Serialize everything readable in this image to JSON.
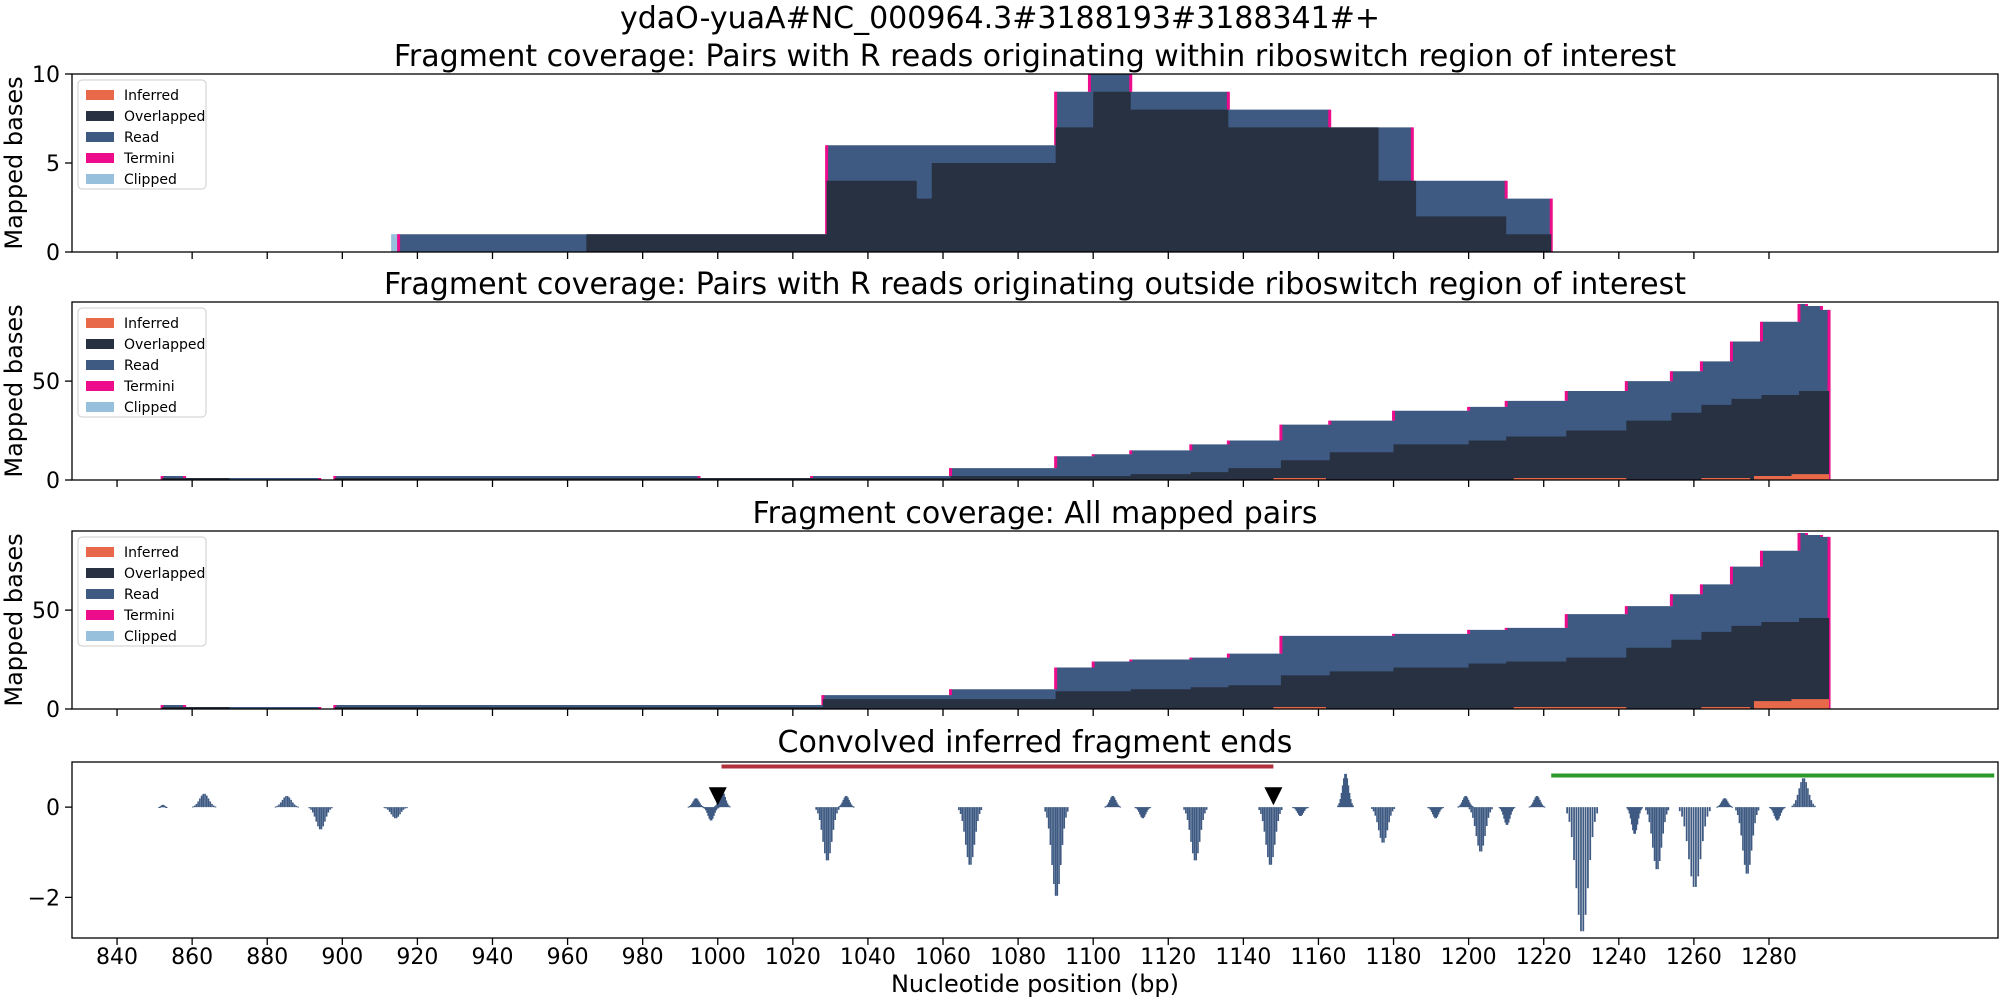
{
  "figure": {
    "suptitle": "ydaO-yuaA#NC_000964.3#3188193#3188341#+",
    "xlabel": "Nucleotide position (bp)"
  },
  "colors": {
    "inferred": "#e8694a",
    "overlapped": "#283142",
    "read": "#3e5a82",
    "termini": "#ec0c8c",
    "clipped": "#97c0dc",
    "bar": "#3e5a82",
    "bracket_red": "#b0303c",
    "bracket_green": "#2a9a2a",
    "marker": "#000000"
  },
  "x_axis": {
    "xlim": [
      828,
      1341
    ],
    "ticks": [
      840,
      860,
      880,
      900,
      920,
      940,
      960,
      980,
      1000,
      1020,
      1040,
      1060,
      1080,
      1100,
      1120,
      1140,
      1160,
      1180,
      1200,
      1220,
      1240,
      1260,
      1280
    ]
  },
  "legend": [
    "Inferred",
    "Overlapped",
    "Read",
    "Termini",
    "Clipped"
  ],
  "chart_data": [
    {
      "type": "area",
      "title": "Fragment coverage: Pairs with R reads originating within riboswitch region of interest",
      "ylabel": "Mapped bases",
      "ylim": [
        0,
        10
      ],
      "yticks": [
        0,
        5,
        10
      ],
      "legend_position": "upper-left",
      "clipped": [
        [
          913,
          1
        ]
      ],
      "read": [
        [
          915,
          1
        ],
        [
          965,
          1
        ],
        [
          1029,
          6
        ],
        [
          1090,
          9
        ],
        [
          1099,
          10
        ],
        [
          1110,
          9
        ],
        [
          1136,
          8
        ],
        [
          1163,
          7
        ],
        [
          1185,
          4
        ],
        [
          1210,
          3
        ],
        [
          1222,
          0
        ]
      ],
      "overlapped": [
        [
          965,
          1
        ],
        [
          1029,
          4
        ],
        [
          1053,
          3
        ],
        [
          1057,
          5
        ],
        [
          1090,
          7
        ],
        [
          1100,
          9
        ],
        [
          1110,
          8
        ],
        [
          1136,
          7
        ],
        [
          1176,
          4
        ],
        [
          1186,
          2
        ],
        [
          1210,
          1
        ],
        [
          1222,
          0
        ]
      ]
    },
    {
      "type": "area",
      "title": "Fragment coverage: Pairs with R reads originating outside riboswitch region of interest",
      "ylabel": "Mapped bases",
      "ylim": [
        0,
        90
      ],
      "yticks": [
        0,
        50
      ],
      "legend_position": "upper-left",
      "read": [
        [
          852,
          2
        ],
        [
          858,
          1
        ],
        [
          870,
          1
        ],
        [
          894,
          0
        ],
        [
          898,
          2
        ],
        [
          960,
          2
        ],
        [
          995,
          1
        ],
        [
          1025,
          2
        ],
        [
          1062,
          6
        ],
        [
          1090,
          12
        ],
        [
          1100,
          13
        ],
        [
          1110,
          15
        ],
        [
          1126,
          18
        ],
        [
          1136,
          20
        ],
        [
          1150,
          28
        ],
        [
          1163,
          30
        ],
        [
          1180,
          35
        ],
        [
          1200,
          37
        ],
        [
          1210,
          40
        ],
        [
          1226,
          45
        ],
        [
          1242,
          50
        ],
        [
          1254,
          55
        ],
        [
          1262,
          60
        ],
        [
          1270,
          70
        ],
        [
          1278,
          80
        ],
        [
          1288,
          89
        ],
        [
          1290,
          88
        ],
        [
          1294,
          86
        ],
        [
          1296,
          0
        ]
      ],
      "overlapped": [
        [
          852,
          1
        ],
        [
          870,
          0
        ],
        [
          898,
          1
        ],
        [
          960,
          1
        ],
        [
          1025,
          1
        ],
        [
          1062,
          2
        ],
        [
          1090,
          2
        ],
        [
          1110,
          3
        ],
        [
          1126,
          4
        ],
        [
          1136,
          6
        ],
        [
          1150,
          10
        ],
        [
          1163,
          14
        ],
        [
          1180,
          18
        ],
        [
          1200,
          20
        ],
        [
          1210,
          22
        ],
        [
          1226,
          25
        ],
        [
          1242,
          30
        ],
        [
          1254,
          34
        ],
        [
          1262,
          38
        ],
        [
          1270,
          41
        ],
        [
          1278,
          43
        ],
        [
          1288,
          45
        ],
        [
          1296,
          0
        ]
      ],
      "inferred": [
        [
          1148,
          1
        ],
        [
          1162,
          0
        ],
        [
          1212,
          1
        ],
        [
          1242,
          0
        ],
        [
          1262,
          1
        ],
        [
          1275,
          0
        ],
        [
          1276,
          2
        ],
        [
          1286,
          3
        ],
        [
          1296,
          0
        ]
      ]
    },
    {
      "type": "area",
      "title": "Fragment coverage: All mapped pairs",
      "ylabel": "Mapped bases",
      "ylim": [
        0,
        90
      ],
      "yticks": [
        0,
        50
      ],
      "legend_position": "upper-left",
      "read": [
        [
          852,
          2
        ],
        [
          858,
          1
        ],
        [
          870,
          1
        ],
        [
          894,
          0
        ],
        [
          898,
          2
        ],
        [
          960,
          2
        ],
        [
          995,
          2
        ],
        [
          1025,
          2
        ],
        [
          1028,
          7
        ],
        [
          1062,
          10
        ],
        [
          1090,
          21
        ],
        [
          1100,
          24
        ],
        [
          1110,
          25
        ],
        [
          1126,
          26
        ],
        [
          1136,
          28
        ],
        [
          1150,
          37
        ],
        [
          1163,
          37
        ],
        [
          1180,
          38
        ],
        [
          1200,
          40
        ],
        [
          1210,
          41
        ],
        [
          1226,
          48
        ],
        [
          1242,
          52
        ],
        [
          1254,
          58
        ],
        [
          1262,
          63
        ],
        [
          1270,
          72
        ],
        [
          1278,
          80
        ],
        [
          1288,
          89
        ],
        [
          1290,
          88
        ],
        [
          1294,
          87
        ],
        [
          1296,
          0
        ]
      ],
      "overlapped": [
        [
          852,
          1
        ],
        [
          870,
          0
        ],
        [
          898,
          1
        ],
        [
          960,
          1
        ],
        [
          1025,
          1
        ],
        [
          1028,
          5
        ],
        [
          1062,
          5
        ],
        [
          1090,
          9
        ],
        [
          1110,
          10
        ],
        [
          1126,
          11
        ],
        [
          1136,
          12
        ],
        [
          1150,
          17
        ],
        [
          1163,
          19
        ],
        [
          1180,
          21
        ],
        [
          1200,
          23
        ],
        [
          1210,
          24
        ],
        [
          1226,
          26
        ],
        [
          1242,
          31
        ],
        [
          1254,
          35
        ],
        [
          1262,
          39
        ],
        [
          1270,
          42
        ],
        [
          1278,
          44
        ],
        [
          1288,
          46
        ],
        [
          1296,
          0
        ]
      ],
      "inferred": [
        [
          1148,
          1
        ],
        [
          1162,
          0
        ],
        [
          1212,
          1
        ],
        [
          1242,
          0
        ],
        [
          1262,
          1
        ],
        [
          1275,
          0
        ],
        [
          1276,
          4
        ],
        [
          1286,
          5
        ],
        [
          1296,
          0
        ]
      ]
    },
    {
      "type": "bar",
      "title": "Convolved inferred fragment ends",
      "ylabel": "",
      "ylim": [
        -2.9,
        1.0
      ],
      "yticks": [
        -2,
        0
      ],
      "peaks": [
        {
          "x": 852,
          "h": 0.05,
          "w": 1
        },
        {
          "x": 863,
          "h": 0.3,
          "w": 3
        },
        {
          "x": 885,
          "h": 0.25,
          "w": 3
        },
        {
          "x": 894,
          "h": -0.5,
          "w": 3
        },
        {
          "x": 914,
          "h": -0.25,
          "w": 3
        },
        {
          "x": 994,
          "h": 0.2,
          "w": 2
        },
        {
          "x": 998,
          "h": -0.3,
          "w": 2
        },
        {
          "x": 1001,
          "h": 0.35,
          "w": 2
        },
        {
          "x": 1029,
          "h": -1.2,
          "w": 3
        },
        {
          "x": 1034,
          "h": 0.25,
          "w": 2
        },
        {
          "x": 1067,
          "h": -1.3,
          "w": 3
        },
        {
          "x": 1090,
          "h": -2.0,
          "w": 3
        },
        {
          "x": 1105,
          "h": 0.25,
          "w": 2
        },
        {
          "x": 1113,
          "h": -0.25,
          "w": 2
        },
        {
          "x": 1127,
          "h": -1.2,
          "w": 3
        },
        {
          "x": 1147,
          "h": -1.3,
          "w": 3
        },
        {
          "x": 1155,
          "h": -0.2,
          "w": 2
        },
        {
          "x": 1167,
          "h": 0.75,
          "w": 2
        },
        {
          "x": 1177,
          "h": -0.8,
          "w": 3
        },
        {
          "x": 1191,
          "h": -0.25,
          "w": 2
        },
        {
          "x": 1199,
          "h": 0.25,
          "w": 2
        },
        {
          "x": 1203,
          "h": -1.0,
          "w": 3
        },
        {
          "x": 1210,
          "h": -0.4,
          "w": 2
        },
        {
          "x": 1218,
          "h": 0.25,
          "w": 2
        },
        {
          "x": 1230,
          "h": -2.8,
          "w": 4
        },
        {
          "x": 1244,
          "h": -0.6,
          "w": 2
        },
        {
          "x": 1250,
          "h": -1.4,
          "w": 3
        },
        {
          "x": 1260,
          "h": -1.8,
          "w": 4
        },
        {
          "x": 1268,
          "h": 0.2,
          "w": 2
        },
        {
          "x": 1274,
          "h": -1.5,
          "w": 3
        },
        {
          "x": 1282,
          "h": -0.3,
          "w": 2
        },
        {
          "x": 1289,
          "h": 0.65,
          "w": 3
        }
      ],
      "markers": [
        1000,
        1148
      ],
      "brackets": [
        {
          "name": "red",
          "from": 1001,
          "to": 1148,
          "y": 0.9
        },
        {
          "name": "green",
          "from": 1222,
          "to": 1340,
          "y": 0.7
        }
      ]
    }
  ]
}
